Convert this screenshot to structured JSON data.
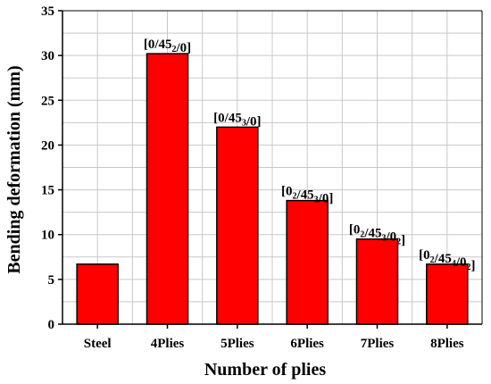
{
  "chart_data": {
    "type": "bar",
    "title": "",
    "xlabel": "Number of plies",
    "ylabel": "Bending deformation (mm)",
    "ylim": [
      0,
      35
    ],
    "yticks": [
      0,
      5,
      10,
      15,
      20,
      25,
      30,
      35
    ],
    "grid": true,
    "bar_color": "#ff0000",
    "categories": [
      "Steel",
      "4Plies",
      "5Plies",
      "6Plies",
      "7Plies",
      "8Plies"
    ],
    "values": [
      6.7,
      30.2,
      22.0,
      13.8,
      9.5,
      6.7
    ],
    "annotations": [
      "",
      "[0/45_2/0]",
      "[0/45_3/0]",
      "[0_2/45_3/0]",
      "[0_2/45_3/0_2]",
      "[0_2/45_4/0_2]"
    ]
  }
}
